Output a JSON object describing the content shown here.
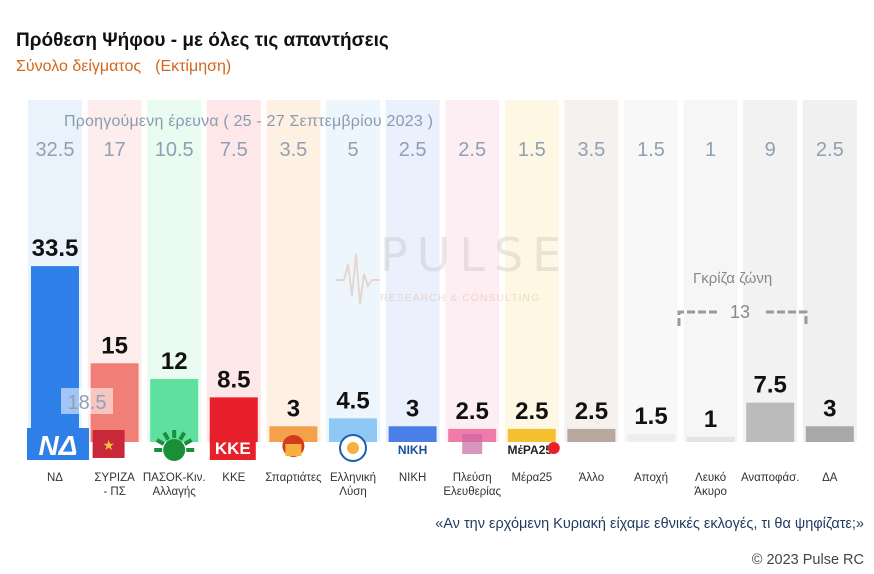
{
  "header": {
    "title": "Πρόθεση Ψήφου - με όλες τις απαντήσεις",
    "subtitle": "Σύνολο δείγματος",
    "subtitle_note": "(Εκτίμηση)",
    "previous_survey": "Προηγούμενη έρευνα  ( 25 - 27 Σεπτεμβρίου 2023 )"
  },
  "watermark": {
    "name": "PULSE",
    "tagline": "RESEARCH & CONSULTING"
  },
  "grey_zone": {
    "label": "Γκρίζα ζώνη",
    "value": "13"
  },
  "footer": {
    "question": "«Αν την ερχόμενη Κυριακή είχαμε εθνικές εκλογές, τι θα ψηφίζατε;»",
    "copyright": "© 2023 Pulse RC"
  },
  "chart_data": {
    "type": "bar",
    "ylim": [
      0,
      35
    ],
    "categories": [
      "ΝΔ",
      "ΣΥΡΙΖΑ\n- ΠΣ",
      "ΠΑΣΟΚ-Κιν.\nΑλλαγής",
      "ΚΚΕ",
      "Σπαρτιάτες",
      "Ελληνική\nΛύση",
      "ΝΙΚΗ",
      "Πλεύση\nΕλευθερίας",
      "Μέρα25",
      "Άλλο",
      "Αποχή",
      "Λευκό\nΆκυρο",
      "Αναποφάσ.",
      "ΔΑ"
    ],
    "values": [
      33.5,
      15,
      12,
      8.5,
      3,
      4.5,
      3,
      2.5,
      2.5,
      2.5,
      1.5,
      1,
      7.5,
      3
    ],
    "value_labels": [
      "33.5",
      "15",
      "12",
      "8.5",
      "3",
      "4.5",
      "3",
      "2.5",
      "2.5",
      "2.5",
      "1.5",
      "1",
      "7.5",
      "3"
    ],
    "previous_labels": [
      "32.5",
      "17",
      "10.5",
      "7.5",
      "3.5",
      "5",
      "2.5",
      "2.5",
      "1.5",
      "3.5",
      "1.5",
      "1",
      "9",
      "2.5"
    ],
    "inner_label": "18.5",
    "colors": [
      "#2f7fe8",
      "#f08077",
      "#5fe0a0",
      "#e8202c",
      "#f5a04a",
      "#8fc8f5",
      "#4a7fe8",
      "#f07aa8",
      "#f5c030",
      "#b8a8a0",
      "#eeeeee",
      "#e4e4e4",
      "#bbbbbb",
      "#a8a8a8"
    ],
    "bg_colors": [
      "#eaf3fc",
      "#fdeeed",
      "#eafbf2",
      "#fde7e8",
      "#fef1e4",
      "#eef6fd",
      "#eaf0fc",
      "#fdeef4",
      "#fef7e4",
      "#f5f1ef",
      "#f8f8f8",
      "#f6f6f6",
      "#f2f2f2",
      "#f0f0f0"
    ],
    "logos": [
      "nd-logo",
      "syriza-logo",
      "pasok-logo",
      "kke-logo",
      "spartiates-logo",
      "elliniki-lysi-logo",
      "niki-logo",
      "plefsi-logo",
      "mera25-logo",
      "",
      "",
      "",
      "",
      ""
    ],
    "logo_texts": {
      "kke": "ΚΚΕ",
      "niki": "ΝΙΚΗ",
      "mera25": "ΜέΡΑ25"
    }
  }
}
